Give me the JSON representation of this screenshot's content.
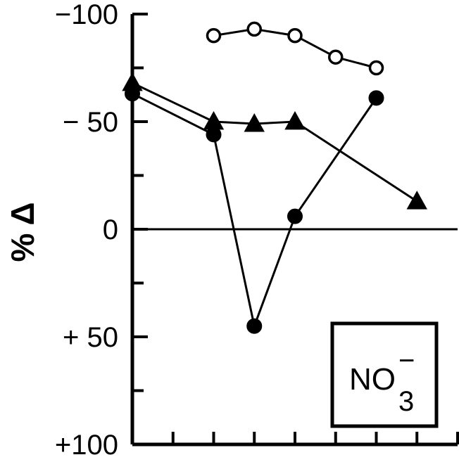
{
  "chart_data": {
    "type": "line",
    "ylabel": "% Δ",
    "ylim": [
      100,
      -100
    ],
    "y_inverted": true,
    "yticks": [
      -100,
      -50,
      0,
      50,
      100
    ],
    "ytick_labels": [
      "−100",
      "− 50",
      "0",
      "+ 50",
      "+100"
    ],
    "zero_line": true,
    "x": [
      1,
      2,
      3,
      4,
      5,
      6,
      7,
      8,
      9
    ],
    "xlim": [
      1,
      9
    ],
    "annotation": {
      "ion": "NO",
      "subscript": "3",
      "superscript": "−"
    },
    "series": [
      {
        "marker": "open-circle",
        "x": [
          3,
          4,
          5,
          6,
          7
        ],
        "values": [
          -90,
          -93,
          -90,
          -80,
          -75
        ]
      },
      {
        "marker": "filled-triangle",
        "x": [
          1,
          3,
          4,
          5,
          8
        ],
        "values": [
          -68,
          -50,
          -49,
          -50,
          -13
        ]
      },
      {
        "marker": "filled-circle",
        "x": [
          1,
          3,
          4,
          5,
          7
        ],
        "values": [
          -63,
          -44,
          45,
          -6,
          -61
        ]
      }
    ]
  }
}
